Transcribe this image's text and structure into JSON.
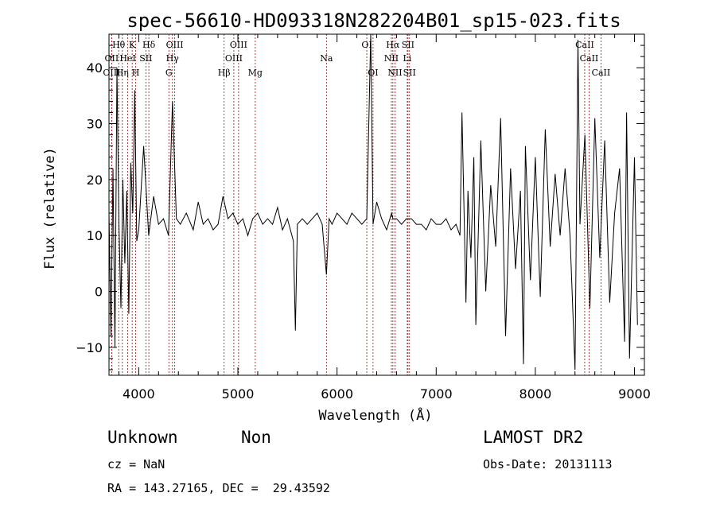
{
  "title": "spec-56610-HD093318N282204B01_sp15-023.fits",
  "info": {
    "object_class": "Unknown",
    "object_subclass": "Non",
    "survey": "LAMOST DR2",
    "cz": "cz = NaN",
    "obs_date": "Obs-Date: 20131113",
    "coords": "RA = 143.27165, DEC =  29.43592"
  },
  "chart_data": {
    "type": "line",
    "xlabel": "Wavelength (Å)",
    "ylabel": "Flux (relative)",
    "xlim": [
      3700,
      9100
    ],
    "ylim": [
      -15,
      46
    ],
    "xticks": [
      4000,
      5000,
      6000,
      7000,
      8000,
      9000
    ],
    "yticks": [
      -10,
      0,
      10,
      20,
      30,
      40
    ],
    "series_color": "#000000",
    "line_marker_color": "#8b1a1a",
    "x": [
      3700,
      3720,
      3740,
      3760,
      3780,
      3800,
      3820,
      3840,
      3860,
      3880,
      3900,
      3920,
      3940,
      3960,
      3980,
      4000,
      4050,
      4100,
      4150,
      4200,
      4250,
      4300,
      4340,
      4380,
      4420,
      4480,
      4550,
      4600,
      4650,
      4700,
      4750,
      4800,
      4850,
      4900,
      4950,
      5000,
      5050,
      5100,
      5150,
      5200,
      5250,
      5300,
      5350,
      5400,
      5450,
      5500,
      5560,
      5580,
      5600,
      5650,
      5700,
      5750,
      5800,
      5850,
      5893,
      5920,
      5950,
      6000,
      6050,
      6100,
      6150,
      6200,
      6250,
      6300,
      6340,
      6363,
      6400,
      6450,
      6500,
      6550,
      6563,
      6600,
      6650,
      6700,
      6750,
      6800,
      6850,
      6900,
      6950,
      7000,
      7050,
      7100,
      7150,
      7200,
      7240,
      7260,
      7300,
      7320,
      7350,
      7380,
      7400,
      7450,
      7500,
      7550,
      7600,
      7650,
      7700,
      7750,
      7800,
      7850,
      7880,
      7900,
      7950,
      8000,
      8050,
      8100,
      8150,
      8200,
      8250,
      8300,
      8350,
      8400,
      8430,
      8450,
      8500,
      8550,
      8600,
      8650,
      8700,
      8750,
      8800,
      8850,
      8900,
      8920,
      8950,
      9000,
      9030
    ],
    "y": [
      14,
      -8,
      22,
      -10,
      40,
      12,
      -3,
      20,
      5,
      18,
      -4,
      23,
      14,
      36,
      9,
      11,
      26,
      10,
      17,
      12,
      13,
      10,
      34,
      13,
      12,
      14,
      11,
      16,
      12,
      13,
      11,
      12,
      17,
      13,
      14,
      12,
      13,
      10,
      13,
      14,
      12,
      13,
      12,
      15,
      11,
      13,
      9,
      -7,
      12,
      13,
      12,
      13,
      14,
      12,
      3,
      13,
      12,
      14,
      13,
      12,
      14,
      13,
      12,
      13,
      46,
      12,
      16,
      13,
      11,
      14,
      13,
      13,
      12,
      13,
      13,
      12,
      12,
      11,
      13,
      12,
      12,
      13,
      11,
      12,
      10,
      32,
      -2,
      18,
      6,
      24,
      -6,
      27,
      0,
      19,
      8,
      31,
      -8,
      22,
      4,
      18,
      -13,
      26,
      2,
      24,
      -1,
      29,
      8,
      21,
      10,
      22,
      10,
      -14,
      45,
      12,
      28,
      -3,
      31,
      6,
      27,
      -2,
      14,
      22,
      -9,
      32,
      -12,
      24,
      -6
    ]
  },
  "spectral_lines": [
    {
      "label": "Hθ",
      "x": 3798,
      "row": 0
    },
    {
      "label": "OII",
      "x": 3727,
      "row": 1
    },
    {
      "label": "OIII",
      "x": 3727,
      "row": 2
    },
    {
      "label": "HeI",
      "x": 3889,
      "row": 1
    },
    {
      "label": "Hη",
      "x": 3835,
      "row": 2
    },
    {
      "label": "K",
      "x": 3934,
      "row": 0
    },
    {
      "label": "SII",
      "x": 4072,
      "row": 1
    },
    {
      "label": "H",
      "x": 3969,
      "row": 2
    },
    {
      "label": "Hδ",
      "x": 4102,
      "row": 0
    },
    {
      "label": "OIII",
      "x": 4363,
      "row": 0
    },
    {
      "label": "Hγ",
      "x": 4340,
      "row": 1
    },
    {
      "label": "G",
      "x": 4304,
      "row": 2
    },
    {
      "label": "OIII",
      "x": 5007,
      "row": 0
    },
    {
      "label": "OIII",
      "x": 4959,
      "row": 1
    },
    {
      "label": "Hβ",
      "x": 4861,
      "row": 2
    },
    {
      "label": "Mg",
      "x": 5175,
      "row": 2
    },
    {
      "label": "Na",
      "x": 5893,
      "row": 1
    },
    {
      "label": "OI",
      "x": 6300,
      "row": 0
    },
    {
      "label": "OI",
      "x": 6363,
      "row": 2
    },
    {
      "label": "Hα",
      "x": 6563,
      "row": 0
    },
    {
      "label": "SII",
      "x": 6716,
      "row": 0
    },
    {
      "label": "NII",
      "x": 6548,
      "row": 1
    },
    {
      "label": "Li",
      "x": 6708,
      "row": 1
    },
    {
      "label": "NII",
      "x": 6584,
      "row": 2
    },
    {
      "label": "SII",
      "x": 6731,
      "row": 2
    },
    {
      "label": "CaII",
      "x": 8498,
      "row": 0
    },
    {
      "label": "CaII",
      "x": 8542,
      "row": 1
    },
    {
      "label": "CaII",
      "x": 8662,
      "row": 2
    }
  ]
}
